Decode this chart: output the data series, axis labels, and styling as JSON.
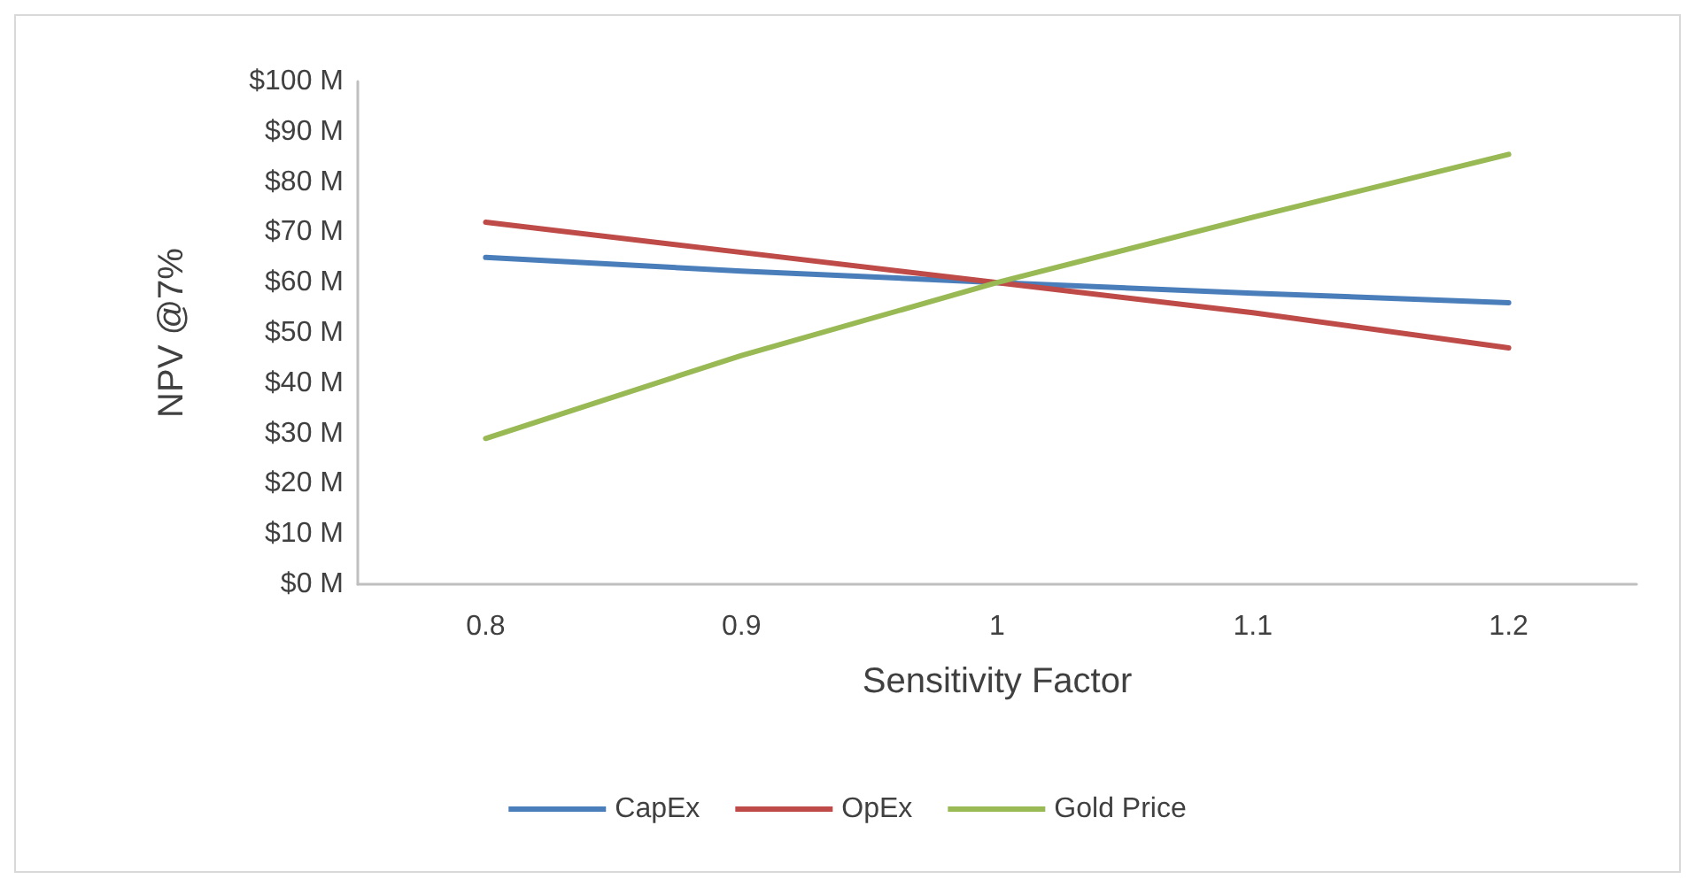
{
  "chart_data": {
    "type": "line",
    "xlabel": "Sensitivity Factor",
    "ylabel": "NPV @7%",
    "categories": [
      "0.8",
      "0.9",
      "1",
      "1.1",
      "1.2"
    ],
    "series": [
      {
        "name": "CapEx",
        "color": "#4a7ebb",
        "values": [
          65,
          62.3,
          60,
          57.9,
          56
        ]
      },
      {
        "name": "OpEx",
        "color": "#be4b48",
        "values": [
          72,
          66,
          60,
          54,
          47
        ]
      },
      {
        "name": "Gold Price",
        "color": "#98b954",
        "values": [
          29,
          45.5,
          60,
          73,
          85.5
        ]
      }
    ],
    "ylim": [
      0,
      100
    ],
    "yticks": [
      {
        "value": 0,
        "label": "$0 M"
      },
      {
        "value": 10,
        "label": "$10 M"
      },
      {
        "value": 20,
        "label": "$20 M"
      },
      {
        "value": 30,
        "label": "$30 M"
      },
      {
        "value": 40,
        "label": "$40 M"
      },
      {
        "value": 50,
        "label": "$50 M"
      },
      {
        "value": 60,
        "label": "$60 M"
      },
      {
        "value": 70,
        "label": "$70 M"
      },
      {
        "value": 80,
        "label": "$80 M"
      },
      {
        "value": 90,
        "label": "$90 M"
      },
      {
        "value": 100,
        "label": "$100 M"
      }
    ],
    "grid": false,
    "legend": "bottom",
    "marker": "none",
    "line_style": "solid"
  }
}
